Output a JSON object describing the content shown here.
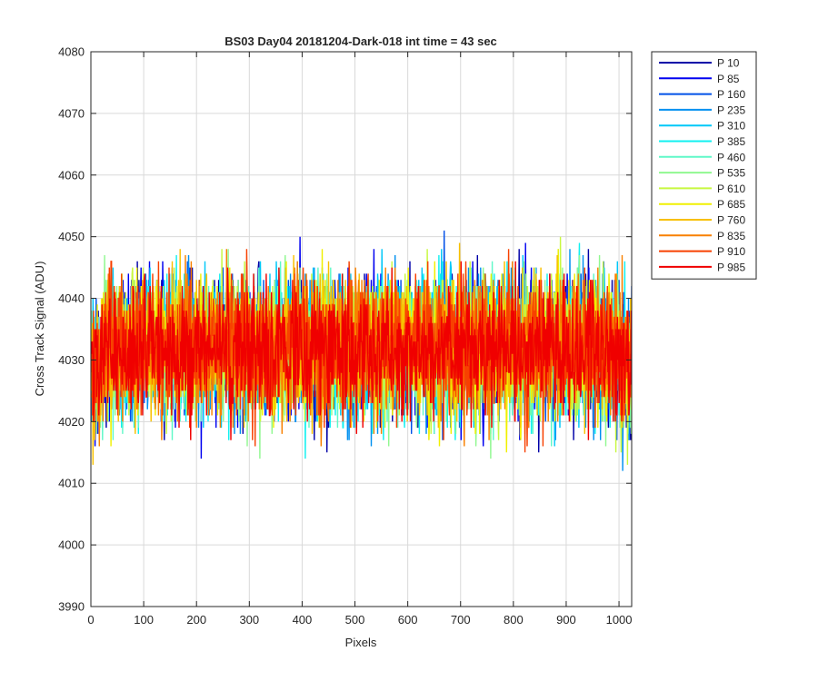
{
  "chart_data": {
    "type": "line",
    "title": "BS03 Day04 20181204-Dark-018 int time = 43 sec",
    "xlabel": "Pixels",
    "ylabel": "Cross Track Signal (ADU)",
    "xlim": [
      0,
      1024
    ],
    "ylim": [
      3990,
      4080
    ],
    "xticks": [
      0,
      100,
      200,
      300,
      400,
      500,
      600,
      700,
      800,
      900,
      1000
    ],
    "yticks": [
      3990,
      4000,
      4010,
      4020,
      4030,
      4040,
      4050,
      4060,
      4070,
      4080
    ],
    "grid": true,
    "legend_position": "outside-right",
    "x_range": [
      1,
      1024
    ],
    "series": [
      {
        "name": "P 10",
        "color": "#0000A8",
        "mean": 4032,
        "spread": 9.0
      },
      {
        "name": "P 85",
        "color": "#0000F0",
        "mean": 4032,
        "spread": 9.0
      },
      {
        "name": "P 160",
        "color": "#0050E8",
        "mean": 4032,
        "spread": 9.0
      },
      {
        "name": "P 235",
        "color": "#0090F0",
        "mean": 4032,
        "spread": 9.0
      },
      {
        "name": "P 310",
        "color": "#00C8F8",
        "mean": 4032,
        "spread": 9.0
      },
      {
        "name": "P 385",
        "color": "#10F0F0",
        "mean": 4032,
        "spread": 9.0
      },
      {
        "name": "P 460",
        "color": "#60F8C8",
        "mean": 4032,
        "spread": 9.0
      },
      {
        "name": "P 535",
        "color": "#90F890",
        "mean": 4032,
        "spread": 9.0
      },
      {
        "name": "P 610",
        "color": "#C8F840",
        "mean": 4032,
        "spread": 9.0
      },
      {
        "name": "P 685",
        "color": "#F0F000",
        "mean": 4032,
        "spread": 9.0
      },
      {
        "name": "P 760",
        "color": "#F8C000",
        "mean": 4032,
        "spread": 9.0
      },
      {
        "name": "P 835",
        "color": "#F88000",
        "mean": 4032,
        "spread": 9.0
      },
      {
        "name": "P 910",
        "color": "#F84000",
        "mean": 4032,
        "spread": 9.0
      },
      {
        "name": "P 985",
        "color": "#F00000",
        "mean": 4032,
        "spread": 8.5
      }
    ]
  }
}
